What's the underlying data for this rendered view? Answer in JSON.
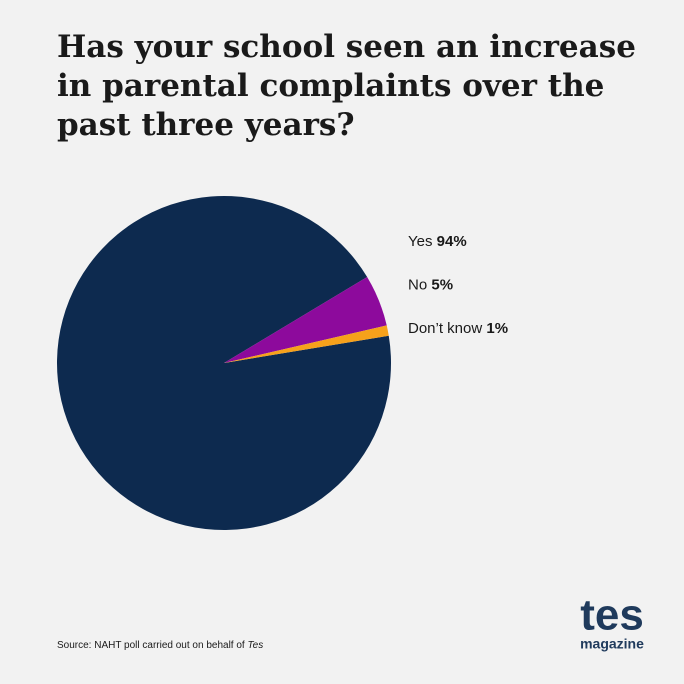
{
  "chart_data": {
    "type": "pie",
    "title": "Has your school seen an increase in parental complaints over the past three years?",
    "categories": [
      "Yes",
      "No",
      "Don’t know"
    ],
    "values": [
      94,
      5,
      1
    ],
    "value_labels": [
      "94%",
      "5%",
      "1%"
    ],
    "colors": [
      "#0d2a4f",
      "#8d0a9c",
      "#f6a11b"
    ],
    "source": {
      "text": "Source: NAHT poll carried out on behalf of",
      "emphasis": "Tes"
    },
    "logo": {
      "main": "tes",
      "sub": "magazine"
    }
  }
}
